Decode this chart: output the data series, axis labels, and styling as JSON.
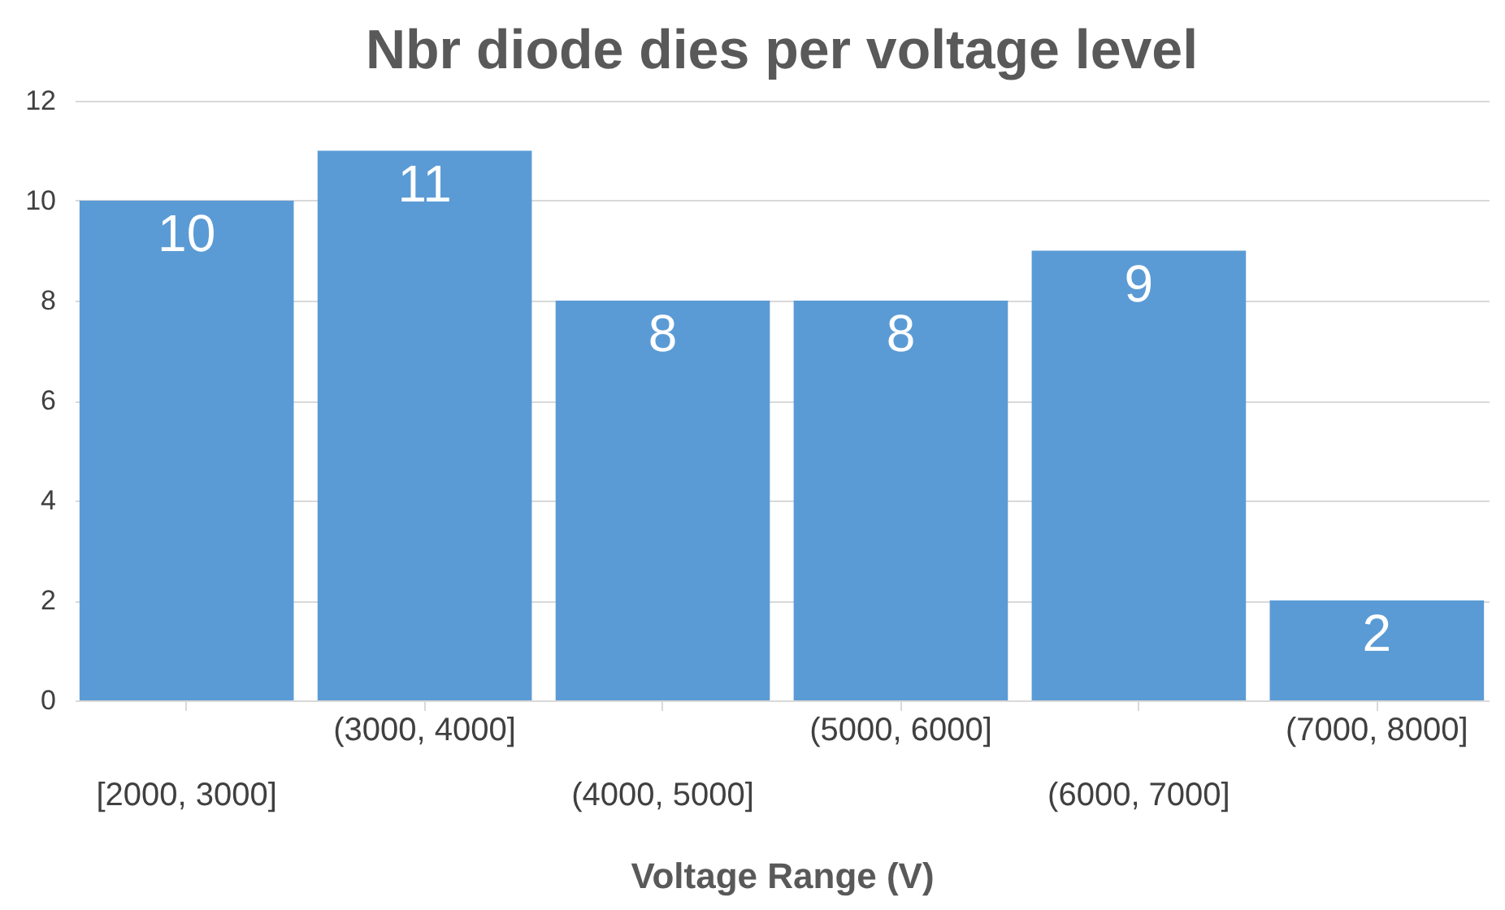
{
  "chart_data": {
    "type": "bar",
    "title": "Nbr diode dies per voltage level",
    "xlabel": "Voltage Range (V)",
    "categories": [
      "[2000, 3000]",
      "(3000, 4000]",
      "(4000, 5000]",
      "(5000, 6000]",
      "(6000, 7000]",
      "(7000, 8000]"
    ],
    "values": [
      10,
      11,
      8,
      8,
      9,
      2
    ],
    "color": "#5b9bd5",
    "ylim": [
      0,
      12
    ],
    "yticks": [
      0,
      2,
      4,
      6,
      8,
      10,
      12
    ],
    "grid": "y",
    "data_labels": true
  }
}
